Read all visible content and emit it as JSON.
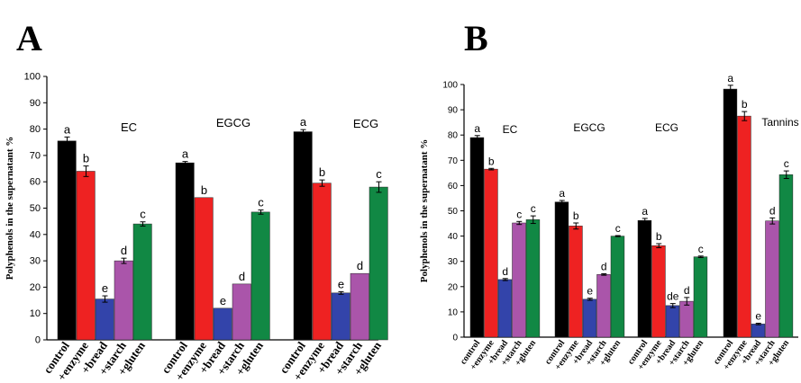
{
  "panel_letters": [
    "A",
    "B"
  ],
  "chart_data": [
    {
      "type": "bar",
      "panel": "A",
      "ylabel": "Polyphenols in the supernatant %",
      "ylim": [
        0,
        100
      ],
      "yticks": [
        0,
        10,
        20,
        30,
        40,
        50,
        60,
        70,
        80,
        90,
        100
      ],
      "categories": [
        "control",
        "+enzyme",
        "+bread",
        "+starch",
        "+gluten"
      ],
      "colors": [
        "#000000",
        "#ee2222",
        "#3344aa",
        "#aa55aa",
        "#118844"
      ],
      "groups": [
        {
          "name": "EC",
          "values": [
            75.5,
            64,
            15.5,
            30,
            44
          ],
          "errors": [
            1.5,
            2,
            1.2,
            1,
            0.8
          ],
          "letters": [
            "a",
            "b",
            "e",
            "d",
            "c"
          ]
        },
        {
          "name": "EGCG",
          "values": [
            67.2,
            54,
            12,
            21.2,
            48.5
          ],
          "errors": [
            0.5,
            0,
            0,
            0,
            0.8
          ],
          "letters": [
            "a",
            "b",
            "e",
            "d",
            "c"
          ]
        },
        {
          "name": "ECG",
          "values": [
            79,
            59.5,
            17.8,
            25.2,
            58
          ],
          "errors": [
            0.8,
            1.2,
            0.5,
            0,
            2
          ],
          "letters": [
            "a",
            "b",
            "e",
            "d",
            "c"
          ]
        }
      ]
    },
    {
      "type": "bar",
      "panel": "B",
      "ylabel": "Polyphenols in the supernatant %",
      "ylim": [
        0,
        100
      ],
      "yticks": [
        0,
        10,
        20,
        30,
        40,
        50,
        60,
        70,
        80,
        90,
        100
      ],
      "categories": [
        "control",
        "+enzyme",
        "+bread",
        "+starch",
        "+gluten"
      ],
      "colors": [
        "#000000",
        "#ee2222",
        "#3344aa",
        "#aa55aa",
        "#118844"
      ],
      "groups": [
        {
          "name": "EC",
          "values": [
            79,
            66.5,
            22.8,
            45.2,
            46.5
          ],
          "errors": [
            0.8,
            0.3,
            0.4,
            0.6,
            1.5
          ],
          "letters": [
            "a",
            "b",
            "d",
            "c",
            "c"
          ]
        },
        {
          "name": "EGCG",
          "values": [
            53.5,
            44,
            15,
            24.8,
            40
          ],
          "errors": [
            0.6,
            1.2,
            0.4,
            0.3,
            0.2
          ],
          "letters": [
            "a",
            "b",
            "e",
            "d",
            "c"
          ]
        },
        {
          "name": "ECG",
          "values": [
            46.2,
            36.2,
            12.5,
            14.2,
            31.8
          ],
          "errors": [
            0.8,
            0.8,
            0.8,
            1.5,
            0.3
          ],
          "letters": [
            "a",
            "b",
            "de",
            "d",
            "c"
          ]
        },
        {
          "name": "Tannins",
          "values": [
            98.2,
            87.5,
            5.2,
            46,
            64.3
          ],
          "errors": [
            1.5,
            1.8,
            0.3,
            1.2,
            1.5
          ],
          "letters": [
            "a",
            "b",
            "e",
            "d",
            "c"
          ]
        }
      ]
    }
  ]
}
